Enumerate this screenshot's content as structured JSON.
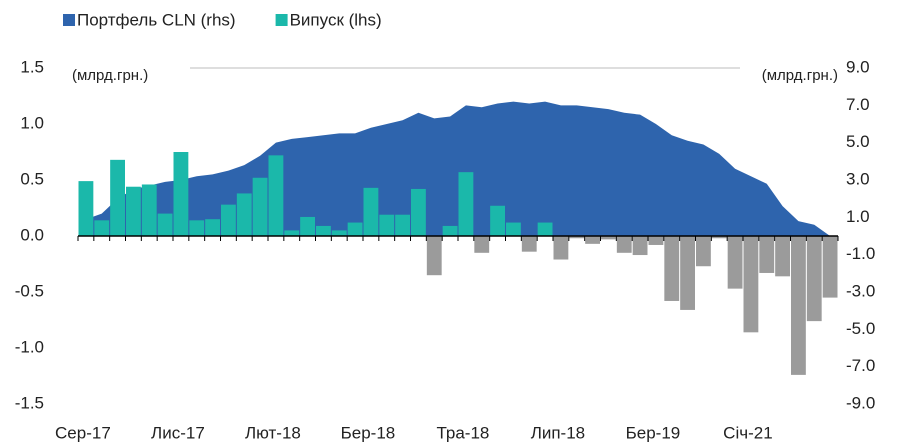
{
  "chart_data": {
    "type": "bar_area_combo",
    "categories": [
      "Сер-17",
      null,
      null,
      null,
      null,
      null,
      "Лис-17",
      null,
      null,
      null,
      null,
      null,
      "Лют-18",
      null,
      null,
      null,
      null,
      null,
      "Бер-18",
      null,
      null,
      null,
      null,
      null,
      "Тра-18",
      null,
      null,
      null,
      null,
      null,
      "Лип-18",
      null,
      null,
      null,
      null,
      null,
      "Бер-19",
      null,
      null,
      null,
      null,
      null,
      "Січ-21",
      null,
      null,
      null,
      null,
      null
    ],
    "series": [
      {
        "name": "Портфель CLN (rhs)",
        "color": "#2e64ad",
        "axis": "y2",
        "kind": "area",
        "values": [
          0.9,
          1.2,
          2.0,
          2.5,
          2.7,
          2.9,
          3.0,
          3.2,
          3.3,
          3.5,
          3.8,
          4.3,
          5.0,
          5.2,
          5.3,
          5.4,
          5.5,
          5.5,
          5.8,
          6.0,
          6.2,
          6.6,
          6.3,
          6.4,
          7.0,
          6.9,
          7.1,
          7.2,
          7.1,
          7.2,
          7.0,
          7.0,
          6.9,
          6.8,
          6.6,
          6.5,
          6.0,
          5.4,
          5.1,
          4.9,
          4.4,
          3.6,
          3.2,
          2.8,
          1.6,
          0.8,
          0.6,
          0
        ]
      },
      {
        "name": "Випуск (lhs)",
        "color": "#1bb8aa",
        "negative_color": "#9b9b9b",
        "kind": "bar",
        "values": [
          0.49,
          0.14,
          0.68,
          0.44,
          0.46,
          0.2,
          0.75,
          0.14,
          0.15,
          0.28,
          0.38,
          0.52,
          0.72,
          0.05,
          0.17,
          0.09,
          0.05,
          0.12,
          0.43,
          0.19,
          0.19,
          0.42,
          -0.35,
          0.09,
          0.57,
          -0.15,
          0.27,
          0.12,
          -0.14,
          0.12,
          -0.21,
          -0.02,
          -0.07,
          -0.03,
          -0.15,
          -0.17,
          -0.08,
          -0.58,
          -0.66,
          -0.27,
          -0.02,
          -0.47,
          -0.86,
          -0.33,
          -0.36,
          -1.24,
          -0.76,
          -0.55
        ]
      }
    ],
    "y_unit_label": "(млрд.грн.)",
    "y2_unit_label": "(млрд.грн.)",
    "ylim": [
      -1.5,
      1.5
    ],
    "yticks": [
      {
        "value": 1.5,
        "label": "1.5"
      },
      {
        "value": 1,
        "label": "1.0"
      },
      {
        "value": 0.5,
        "label": "0.5"
      },
      {
        "value": 0,
        "label": "0.0"
      },
      {
        "value": -0.5,
        "label": "-0.5"
      },
      {
        "value": -1,
        "label": "-1.0"
      },
      {
        "value": -1.5,
        "label": "-1.5"
      }
    ],
    "y2lim": [
      -9,
      9
    ],
    "y2ticks": [
      {
        "value": 9,
        "label": "9.0"
      },
      {
        "value": 7,
        "label": "7.0"
      },
      {
        "value": 5,
        "label": "5.0"
      },
      {
        "value": 3,
        "label": "3.0"
      },
      {
        "value": 1,
        "label": "1.0"
      },
      {
        "value": -1,
        "label": "-1.0"
      },
      {
        "value": -3,
        "label": "-3.0"
      },
      {
        "value": -5,
        "label": "-5.0"
      },
      {
        "value": -7,
        "label": "-7.0"
      },
      {
        "value": -9,
        "label": "-9.0"
      }
    ],
    "grid": false,
    "legend": "top-left"
  }
}
